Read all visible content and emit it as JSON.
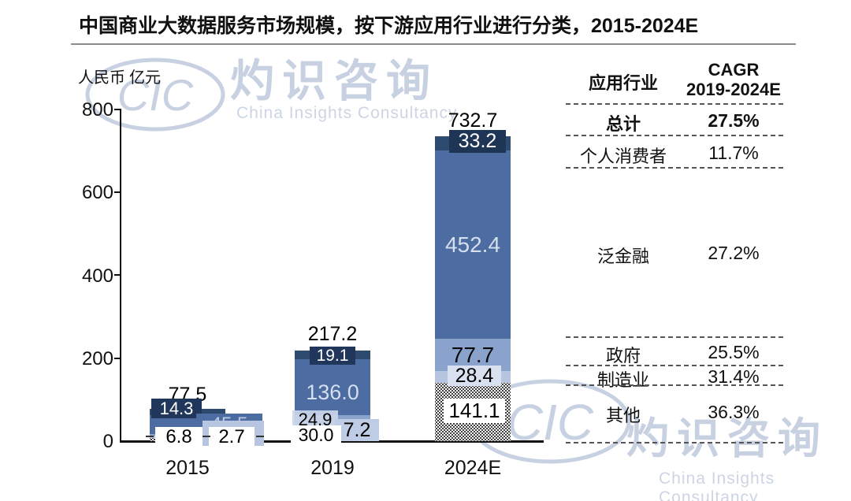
{
  "title": "中国商业大数据服务市场规模，按下游应用行业进行分类，2015-2024E",
  "y_axis": {
    "unit": "人民币 亿元",
    "ticks": [
      "800",
      "600",
      "400",
      "200",
      "0"
    ]
  },
  "x_axis": {
    "categories": [
      "2015",
      "2019",
      "2024E"
    ]
  },
  "chart_data": {
    "type": "bar",
    "stacked": true,
    "title": "中国商业大数据服务市场规模，按下游应用行业进行分类，2015-2024E",
    "ylabel": "人民币 亿元",
    "ylim": [
      0,
      800
    ],
    "grid": false,
    "legend_position": "right-table",
    "categories": [
      "2015",
      "2019",
      "2024E"
    ],
    "series": [
      {
        "name": "个人消费者",
        "values": [
          14.3,
          19.1,
          33.2
        ]
      },
      {
        "name": "泛金融",
        "values": [
          45.5,
          136.0,
          452.4
        ]
      },
      {
        "name": "政府",
        "values": [
          6.8,
          24.9,
          77.7
        ]
      },
      {
        "name": "制造业",
        "values": [
          2.7,
          7.2,
          28.4
        ]
      },
      {
        "name": "其他",
        "values": [
          8.2,
          30.0,
          141.1
        ]
      }
    ],
    "totals": [
      77.5,
      217.2,
      732.7
    ],
    "palette": {
      "个人消费者": "#2e4a6e",
      "泛金融": "#4c6ca2",
      "政府": "#89a3cd",
      "制造业": "#b7c5e1",
      "其他": "hatch"
    },
    "data_labels": {
      "y2015": {
        "total": "77.5",
        "consumer": "14.3",
        "finance": "45.5",
        "government": "6.8",
        "manufacturing": "2.7"
      },
      "y2019": {
        "total": "217.2",
        "consumer": "19.1",
        "finance": "136.0",
        "government": "24.9",
        "manufacturing": "7.2",
        "other": "30.0"
      },
      "y2024": {
        "total": "732.7",
        "consumer": "33.2",
        "finance": "452.4",
        "government": "77.7",
        "manufacturing": "28.4",
        "other": "141.1"
      }
    }
  },
  "table": {
    "header": {
      "col1": "应用行业",
      "col2_line1": "CAGR",
      "col2_line2": "2019-2024E"
    },
    "rows": [
      {
        "label": "总计",
        "value": "27.5%"
      },
      {
        "label": "个人消费者",
        "value": "11.7%"
      },
      {
        "label": "泛金融",
        "value": "27.2%"
      },
      {
        "label": "政府",
        "value": "25.5%"
      },
      {
        "label": "制造业",
        "value": "31.4%"
      },
      {
        "label": "其他",
        "value": "36.3%"
      }
    ]
  },
  "watermark": {
    "logo_text": "CIC",
    "name_zh": "灼识咨询",
    "name_en": "China Insights Consultancy"
  }
}
